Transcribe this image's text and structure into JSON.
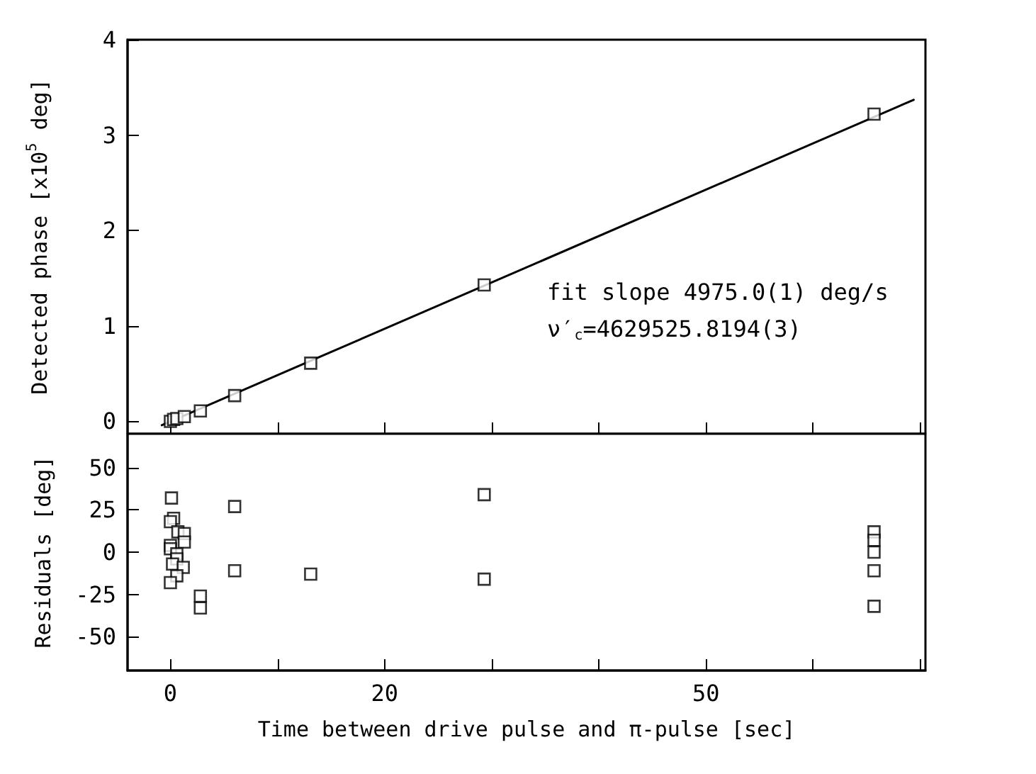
{
  "chart_data": [
    {
      "type": "scatter",
      "ylabel": "Detected phase [x10$^{5}$ deg]",
      "xlim": [
        -4,
        70.5
      ],
      "xticks": [
        {
          "value": 0,
          "label": null
        },
        {
          "value": 10,
          "label": null
        },
        {
          "value": 20,
          "label": null
        },
        {
          "value": 30,
          "label": null
        },
        {
          "value": 40,
          "label": null
        },
        {
          "value": 50,
          "label": null
        },
        {
          "value": 60,
          "label": null
        },
        {
          "value": 70,
          "label": null
        }
      ],
      "ylim": [
        -0.13,
        4
      ],
      "yticks": [
        0,
        1,
        2,
        3,
        4
      ],
      "tick_labels": "y",
      "grid": false,
      "annotations": [
        "fit slope 4975.0(1) deg/s",
        "ν′$_{c}$=4629525.8194(3)"
      ],
      "series": [
        {
          "type": "line",
          "color": "#000000",
          "marker": "none",
          "line_style": "solid",
          "x": [
            -0.8,
            69.4
          ],
          "values": [
            -0.04,
            3.37
          ]
        },
        {
          "type": "scatter",
          "color": "#000000",
          "marker": "square",
          "x": [
            0,
            0.3,
            0.6,
            1.3,
            2.8,
            6.0,
            13.1,
            29.3,
            65.7
          ],
          "values": [
            0,
            0.02,
            0.03,
            0.05,
            0.11,
            0.27,
            0.61,
            1.43,
            3.22
          ]
        }
      ]
    },
    {
      "type": "scatter",
      "xlabel": "Time between drive pulse and π-pulse [sec]",
      "ylabel": "Residuals [deg]",
      "xlim": [
        -4,
        70.5
      ],
      "xticks": [
        0,
        {
          "value": 10,
          "label": null
        },
        20,
        {
          "value": 30,
          "label": null
        },
        {
          "value": 40,
          "label": null
        },
        50,
        {
          "value": 60,
          "label": null
        },
        {
          "value": 70,
          "label": null
        }
      ],
      "ylim": [
        -70,
        70
      ],
      "yticks": [
        -50,
        -25,
        0,
        25,
        50
      ],
      "grid": false,
      "series": [
        {
          "type": "scatter",
          "color": "#000000",
          "marker": "square",
          "x": [
            0.1,
            0.3,
            0,
            0.7,
            1.3,
            1.3,
            0,
            0,
            0.6,
            0.6,
            0.2,
            1.2,
            0.6,
            0,
            6.0,
            6.0,
            2.8,
            2.8,
            13.1,
            29.3,
            29.3,
            65.7,
            65.7,
            65.7,
            65.7,
            65.7
          ],
          "values": [
            32,
            20,
            18,
            12,
            11,
            6,
            4,
            2,
            -1,
            -4,
            -7,
            -9,
            -14,
            -18,
            27,
            -11,
            -26,
            -33,
            -13,
            34,
            -16,
            12,
            7,
            0,
            -11,
            -32
          ]
        }
      ]
    }
  ]
}
